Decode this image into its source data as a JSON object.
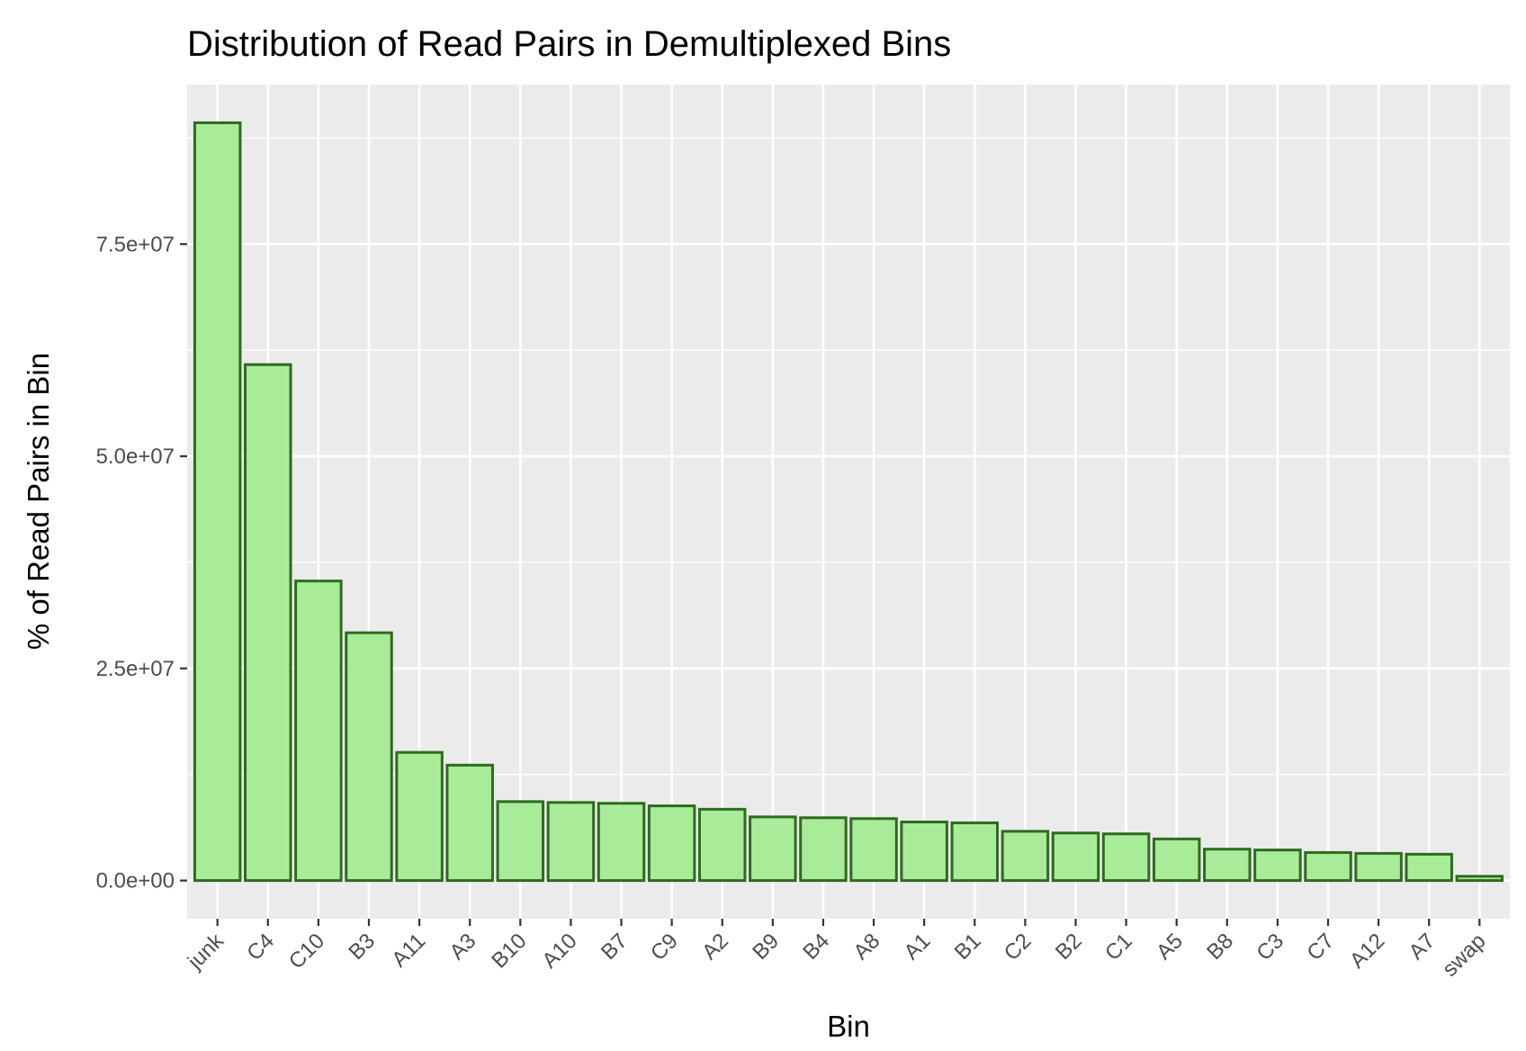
{
  "chart_data": {
    "type": "bar",
    "title": "Distribution of Read Pairs in Demultiplexed Bins",
    "xlabel": "Bin",
    "ylabel": "% of Read Pairs in Bin",
    "categories": [
      "junk",
      "C4",
      "C10",
      "B3",
      "A11",
      "A3",
      "B10",
      "A10",
      "B7",
      "C9",
      "A2",
      "B9",
      "B4",
      "A8",
      "A1",
      "B1",
      "C2",
      "B2",
      "C1",
      "A5",
      "B8",
      "C3",
      "C7",
      "A12",
      "A7",
      "swap"
    ],
    "values": [
      89300000,
      60800000,
      35300000,
      29200000,
      15100000,
      13600000,
      9300000,
      9200000,
      9100000,
      8800000,
      8400000,
      7500000,
      7400000,
      7300000,
      6900000,
      6800000,
      5800000,
      5600000,
      5500000,
      4900000,
      3700000,
      3600000,
      3300000,
      3200000,
      3100000,
      500000
    ],
    "ylim": [
      -4500000,
      93800000
    ],
    "yticks": [
      {
        "value": 0,
        "label": "0.0e+00"
      },
      {
        "value": 25000000,
        "label": "2.5e+07"
      },
      {
        "value": 50000000,
        "label": "5.0e+07"
      },
      {
        "value": 75000000,
        "label": "7.5e+07"
      }
    ],
    "grid": true,
    "colors": {
      "panel": "#ebebeb",
      "grid": "#ffffff",
      "bar_fill": "#a8eb98",
      "bar_stroke": "#2e6b1f",
      "tick_text": "#4d4d4d",
      "axis_tick": "#333333"
    }
  }
}
